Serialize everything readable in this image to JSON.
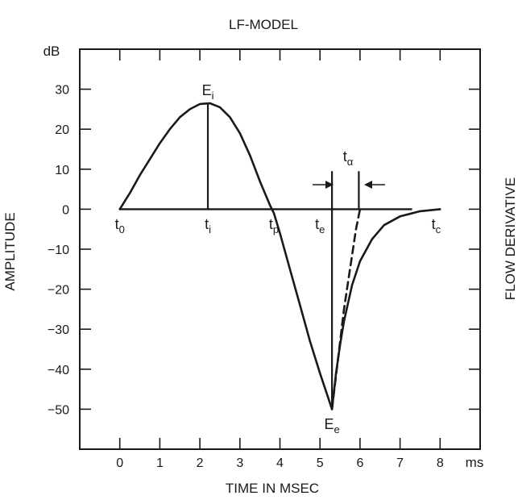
{
  "chart_data": {
    "type": "line",
    "title": "LF-MODEL",
    "xlabel": "TIME IN MSEC",
    "ylabel": "AMPLITUDE",
    "right_label": "FLOW DERIVATIVE",
    "y_unit": "dB",
    "x_unit": "ms",
    "xlim": [
      -1,
      9
    ],
    "ylim": [
      -60,
      40
    ],
    "x_ticks": [
      0,
      1,
      2,
      3,
      4,
      5,
      6,
      7,
      8
    ],
    "y_ticks": [
      30,
      20,
      10,
      0,
      -10,
      -20,
      -30,
      -40,
      -50
    ],
    "x_tick_labels": [
      "0",
      "1",
      "2",
      "3",
      "4",
      "5",
      "6",
      "7",
      "8"
    ],
    "y_tick_labels": [
      "30",
      "20",
      "10",
      "0",
      "−10",
      "−20",
      "−30",
      "−40",
      "−50"
    ],
    "grid": false,
    "series": [
      {
        "style": "solid",
        "x": [
          0,
          0.25,
          0.5,
          0.75,
          1.0,
          1.25,
          1.5,
          1.75,
          2.0,
          2.25,
          2.5,
          2.75,
          3.0,
          3.25,
          3.5,
          3.75,
          3.85,
          4.0,
          4.25,
          4.5,
          4.75,
          5.0,
          5.3
        ],
        "y": [
          0,
          4,
          8.5,
          12.5,
          16.5,
          20,
          23,
          25,
          26.3,
          26.5,
          25.5,
          23,
          19,
          13.5,
          7,
          1,
          -1,
          -6,
          -15,
          -24,
          -33,
          -41,
          -50
        ]
      },
      {
        "style": "solid",
        "x": [
          5.3,
          5.4,
          5.5,
          5.6,
          5.8,
          6.0,
          6.3,
          6.6,
          7.0,
          7.5,
          8.0
        ],
        "y": [
          -50,
          -41,
          -34,
          -28,
          -19,
          -13,
          -7.5,
          -4,
          -1.8,
          -0.5,
          0
        ]
      },
      {
        "style": "dashed",
        "x": [
          5.3,
          5.6,
          5.9,
          6.0
        ],
        "y": [
          -50,
          -25,
          -5,
          0
        ]
      }
    ],
    "vertical_markers": [
      {
        "x": 2.2,
        "y_from": 0,
        "y_to": 26.5
      },
      {
        "x": 5.3,
        "y_from": -50,
        "y_to": 9.5
      },
      {
        "x": 5.97,
        "y_from": 0,
        "y_to": 9.5
      }
    ],
    "annotations": [
      {
        "id": "Ei",
        "base": "E",
        "sub": "i",
        "x": 2.2,
        "y": 28.5
      },
      {
        "id": "Ee",
        "base": "E",
        "sub": "e",
        "x": 5.3,
        "y": -55
      },
      {
        "id": "t0",
        "base": "t",
        "sub": "0",
        "x": 0,
        "y": -5
      },
      {
        "id": "ti",
        "base": "t",
        "sub": "i",
        "x": 2.2,
        "y": -5
      },
      {
        "id": "tp",
        "base": "t",
        "sub": "p",
        "x": 3.85,
        "y": -5
      },
      {
        "id": "te",
        "base": "t",
        "sub": "e",
        "x": 5.0,
        "y": -5
      },
      {
        "id": "tc",
        "base": "t",
        "sub": "c",
        "x": 7.9,
        "y": -5
      },
      {
        "id": "talpha",
        "base": "t",
        "sub": "α",
        "x": 5.7,
        "y": 12
      }
    ]
  }
}
